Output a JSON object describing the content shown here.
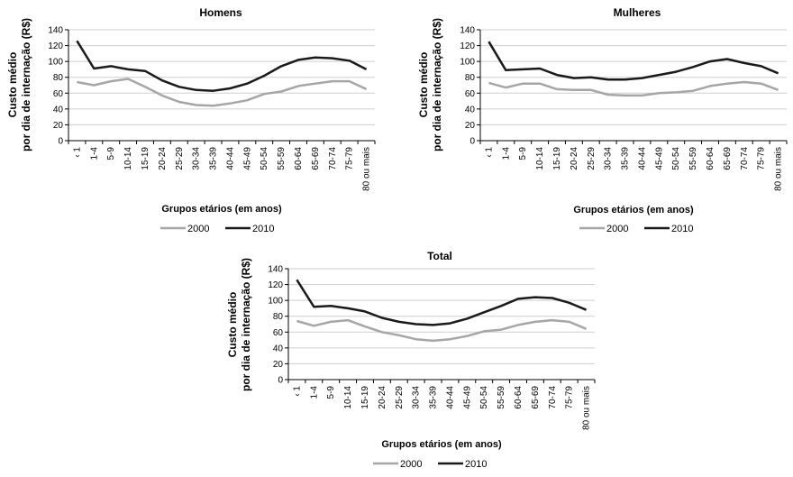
{
  "chart_data": [
    {
      "type": "line",
      "title": "Homens",
      "ylabel_line1": "Custo médio",
      "ylabel_line2": "por dia de internação (R$)",
      "xlabel": "Grupos etários (em anos)",
      "categories": [
        "‹ 1",
        "1-4",
        "5-9",
        "10-14",
        "15-19",
        "20-24",
        "25-29",
        "30-34",
        "35-39",
        "40-44",
        "45-49",
        "50-54",
        "55-59",
        "60-64",
        "65-69",
        "70-74",
        "75-79",
        "80 ou mais"
      ],
      "yticks": [
        "0",
        "20",
        "40",
        "60",
        "80",
        "100",
        "120",
        "140"
      ],
      "ylim": [
        0,
        140
      ],
      "grid": true,
      "legend_position": "bottom",
      "series": [
        {
          "name": "2000",
          "color": "#a6a6a6",
          "values": [
            74,
            70,
            75,
            78,
            68,
            57,
            49,
            45,
            44,
            47,
            51,
            59,
            62,
            69,
            72,
            75,
            75,
            65
          ]
        },
        {
          "name": "2010",
          "color": "#1a1a1a",
          "values": [
            126,
            91,
            94,
            90,
            88,
            76,
            68,
            64,
            63,
            66,
            72,
            82,
            94,
            102,
            105,
            104,
            101,
            90
          ]
        }
      ]
    },
    {
      "type": "line",
      "title": "Mulheres",
      "ylabel_line1": "Custo médio",
      "ylabel_line2": "por dia de internação (R$)",
      "xlabel": "Grupos etários (em anos)",
      "categories": [
        "‹ 1",
        "1-4",
        "5-9",
        "10-14",
        "15-19",
        "20-24",
        "25-29",
        "30-34",
        "35-39",
        "40-44",
        "45-49",
        "50-54",
        "55-59",
        "60-64",
        "65-69",
        "70-74",
        "75-79",
        "80 ou mais"
      ],
      "yticks": [
        "0",
        "20",
        "40",
        "60",
        "80",
        "100",
        "120",
        "140"
      ],
      "ylim": [
        0,
        140
      ],
      "grid": true,
      "legend_position": "bottom",
      "series": [
        {
          "name": "2000",
          "color": "#a6a6a6",
          "values": [
            73,
            67,
            72,
            72,
            65,
            64,
            64,
            58,
            57,
            57,
            60,
            61,
            63,
            69,
            72,
            74,
            72,
            64
          ]
        },
        {
          "name": "2010",
          "color": "#1a1a1a",
          "values": [
            125,
            89,
            90,
            91,
            83,
            79,
            80,
            77,
            77,
            79,
            83,
            87,
            93,
            100,
            103,
            98,
            94,
            85
          ]
        }
      ]
    },
    {
      "type": "line",
      "title": "Total",
      "ylabel_line1": "Custo médio",
      "ylabel_line2": "por dia de internação (R$)",
      "xlabel": "Grupos etários (em anos)",
      "categories": [
        "‹ 1",
        "1-4",
        "5-9",
        "10-14",
        "15-19",
        "20-24",
        "25-29",
        "30-34",
        "35-39",
        "40-44",
        "45-49",
        "50-54",
        "55-59",
        "60-64",
        "65-69",
        "70-74",
        "75-79",
        "80 ou mais"
      ],
      "yticks": [
        "0",
        "20",
        "40",
        "60",
        "80",
        "100",
        "120",
        "140"
      ],
      "ylim": [
        0,
        140
      ],
      "grid": true,
      "legend_position": "bottom",
      "series": [
        {
          "name": "2000",
          "color": "#a6a6a6",
          "values": [
            74,
            68,
            73,
            75,
            67,
            60,
            56,
            51,
            49,
            51,
            55,
            61,
            63,
            69,
            73,
            75,
            73,
            64
          ]
        },
        {
          "name": "2010",
          "color": "#1a1a1a",
          "values": [
            126,
            92,
            93,
            90,
            86,
            78,
            73,
            70,
            69,
            71,
            77,
            85,
            93,
            102,
            104,
            103,
            97,
            88
          ]
        }
      ]
    }
  ]
}
